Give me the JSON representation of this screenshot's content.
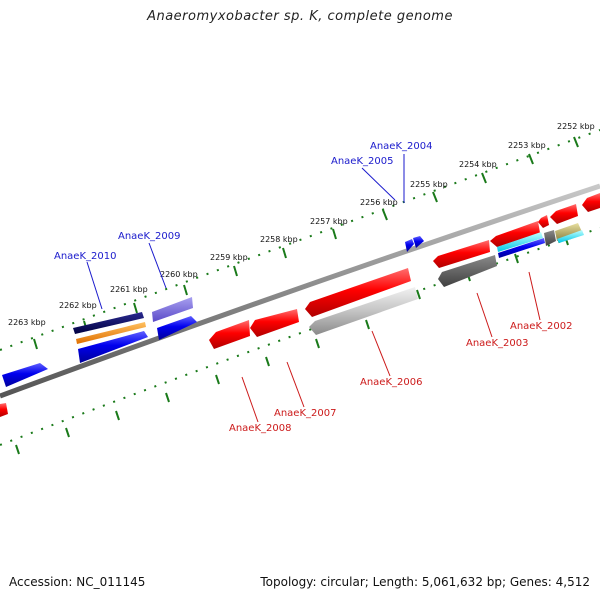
{
  "title": "Anaeromyxobacter sp. K, complete genome",
  "accession": "Accession: NC_011145",
  "topology": "Topology: circular; Length: 5,061,632 bp; Genes: 4,512",
  "colors": {
    "forward": "#0000ee",
    "reverse": "#ee0000",
    "forward_label": "#1a1acc",
    "reverse_label": "#cc1a1a",
    "tick": "#1a7a1a",
    "backbone": "#8a8a8a"
  },
  "kbp_labels": [
    "2252 kbp",
    "2253 kbp",
    "2254 kbp",
    "2255 kbp",
    "2256 kbp",
    "2257 kbp",
    "2258 kbp",
    "2259 kbp",
    "2260 kbp",
    "2261 kbp",
    "2262 kbp",
    "2263 kbp"
  ],
  "gene_labels_forward": [
    "AnaeK_2004",
    "AnaeK_2005",
    "AnaeK_2009",
    "AnaeK_2010"
  ],
  "gene_labels_reverse": [
    "AnaeK_2002",
    "AnaeK_2003",
    "AnaeK_2006",
    "AnaeK_2007",
    "AnaeK_2008"
  ]
}
